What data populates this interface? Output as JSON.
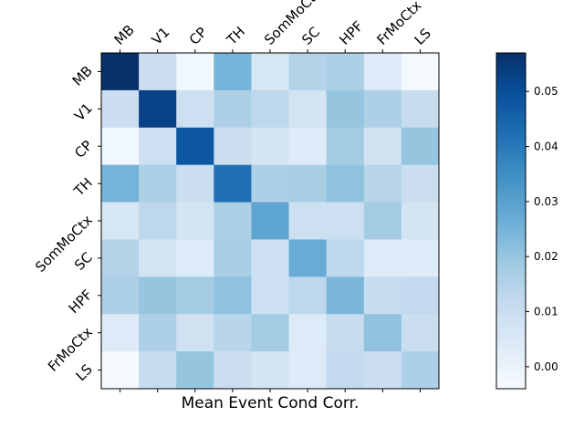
{
  "chart_data": {
    "type": "heatmap",
    "title": "",
    "xlabel": "Mean Event Cond Corr.",
    "ylabel": "",
    "x_categories": [
      "MB",
      "V1",
      "CP",
      "TH",
      "SomMoCtx",
      "SC",
      "HPF",
      "FrMoCtx",
      "LS"
    ],
    "y_categories": [
      "MB",
      "V1",
      "CP",
      "TH",
      "SomMoCtx",
      "SC",
      "HPF",
      "FrMoCtx",
      "LS"
    ],
    "values": [
      [
        0.057,
        0.01,
        -0.002,
        0.025,
        0.006,
        0.015,
        0.016,
        0.004,
        -0.003
      ],
      [
        0.01,
        0.053,
        0.009,
        0.016,
        0.013,
        0.007,
        0.02,
        0.016,
        0.011
      ],
      [
        -0.002,
        0.009,
        0.048,
        0.01,
        0.007,
        0.004,
        0.018,
        0.008,
        0.02
      ],
      [
        0.025,
        0.016,
        0.01,
        0.042,
        0.016,
        0.017,
        0.021,
        0.014,
        0.01
      ],
      [
        0.006,
        0.013,
        0.007,
        0.016,
        0.029,
        0.009,
        0.009,
        0.018,
        0.007
      ],
      [
        0.015,
        0.007,
        0.004,
        0.017,
        0.009,
        0.027,
        0.013,
        0.004,
        0.004
      ],
      [
        0.016,
        0.02,
        0.018,
        0.021,
        0.009,
        0.013,
        0.024,
        0.011,
        0.012
      ],
      [
        0.004,
        0.016,
        0.008,
        0.014,
        0.018,
        0.004,
        0.011,
        0.021,
        0.01
      ],
      [
        -0.003,
        0.011,
        0.02,
        0.01,
        0.007,
        0.004,
        0.012,
        0.01,
        0.016
      ]
    ],
    "colormap": "Blues",
    "value_range": [
      -0.004,
      0.057
    ],
    "colorbar_ticks": [
      "0.00",
      "0.01",
      "0.02",
      "0.03",
      "0.04",
      "0.05"
    ],
    "colorbar_tick_values": [
      0.0,
      0.01,
      0.02,
      0.03,
      0.04,
      0.05
    ],
    "grid": false,
    "legend": "colorbar-right"
  }
}
